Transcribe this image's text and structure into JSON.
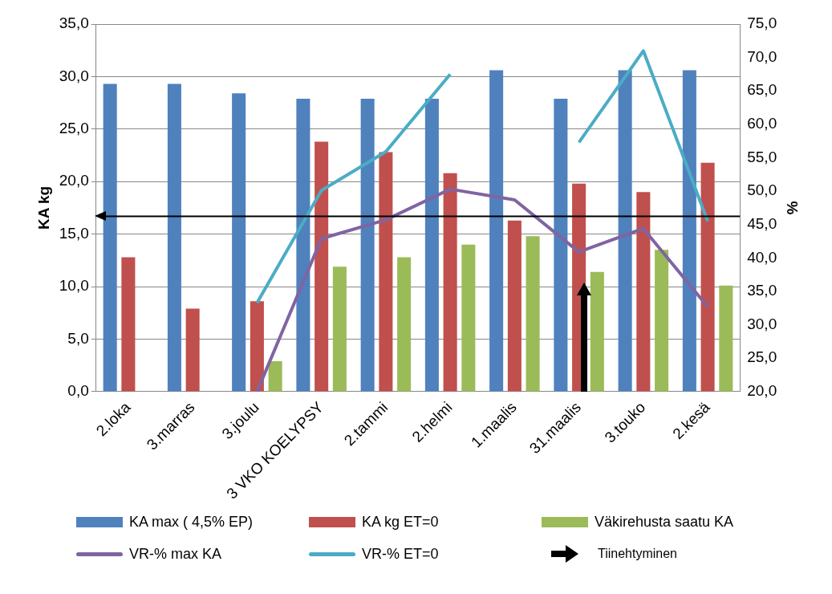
{
  "chart_data": {
    "type": "bar",
    "ylabel": "KA kg",
    "y2label": "%",
    "categories": [
      "2.loka",
      "3.marras",
      "3.joulu",
      "3 VKO KOELYPSY",
      "2.tammi",
      "2.helmi",
      "1.maalis",
      "31.maalis",
      "3.touko",
      "2.kesä"
    ],
    "series": [
      {
        "name": "KA max ( 4,5% EP)",
        "color": "#4f81bd",
        "values": [
          29.3,
          29.3,
          28.4,
          27.9,
          27.9,
          27.9,
          30.6,
          27.9,
          30.6,
          30.6
        ]
      },
      {
        "name": "KA kg ET=0",
        "color": "#c0504d",
        "values": [
          12.8,
          7.9,
          8.6,
          23.8,
          22.8,
          20.8,
          16.3,
          19.8,
          19.0,
          21.8
        ]
      },
      {
        "name": "Väkirehusta saatu KA",
        "color": "#9bbb59",
        "values": [
          null,
          null,
          2.9,
          11.9,
          12.8,
          14.0,
          14.8,
          11.4,
          13.5,
          10.1
        ]
      },
      {
        "name": "VR-% max KA",
        "type": "line",
        "axis": "y2",
        "color": "#8064a2",
        "values": [
          null,
          null,
          20.0,
          42.9,
          45.7,
          50.3,
          48.7,
          40.9,
          44.4,
          32.7
        ]
      },
      {
        "name": "VR-% ET=0",
        "type": "line",
        "axis": "y2",
        "color": "#4bacc6",
        "values": [
          null,
          null,
          33.3,
          50.1,
          55.9,
          67.5,
          null,
          57.3,
          71.0,
          45.5
        ]
      }
    ],
    "ylim": [
      0,
      35
    ],
    "yticks": [
      {
        "value": 0,
        "label": "0,0"
      },
      {
        "value": 5,
        "label": "5,0"
      },
      {
        "value": 10,
        "label": "10,0"
      },
      {
        "value": 15,
        "label": "15,0"
      },
      {
        "value": 20,
        "label": "20,0"
      },
      {
        "value": 25,
        "label": "25,0"
      },
      {
        "value": 30,
        "label": "30,0"
      },
      {
        "value": 35,
        "label": "35,0"
      }
    ],
    "y2lim": [
      20,
      75
    ],
    "y2ticks": [
      {
        "value": 20,
        "label": "20,0"
      },
      {
        "value": 25,
        "label": "25,0"
      },
      {
        "value": 30,
        "label": "30,0"
      },
      {
        "value": 35,
        "label": "35,0"
      },
      {
        "value": 40,
        "label": "40,0"
      },
      {
        "value": 45,
        "label": "45,0"
      },
      {
        "value": 50,
        "label": "50,0"
      },
      {
        "value": 55,
        "label": "55,0"
      },
      {
        "value": 60,
        "label": "60,0"
      },
      {
        "value": 65,
        "label": "65,0"
      },
      {
        "value": 70,
        "label": "70,0"
      },
      {
        "value": 75,
        "label": "75,0"
      }
    ],
    "ref_lines": [
      {
        "axis": "y",
        "value": 16.7,
        "color": "#000000"
      }
    ],
    "annotations": [
      "Tiinehtyminen"
    ],
    "grid": "y",
    "legend": "bottom",
    "marker": "none"
  }
}
